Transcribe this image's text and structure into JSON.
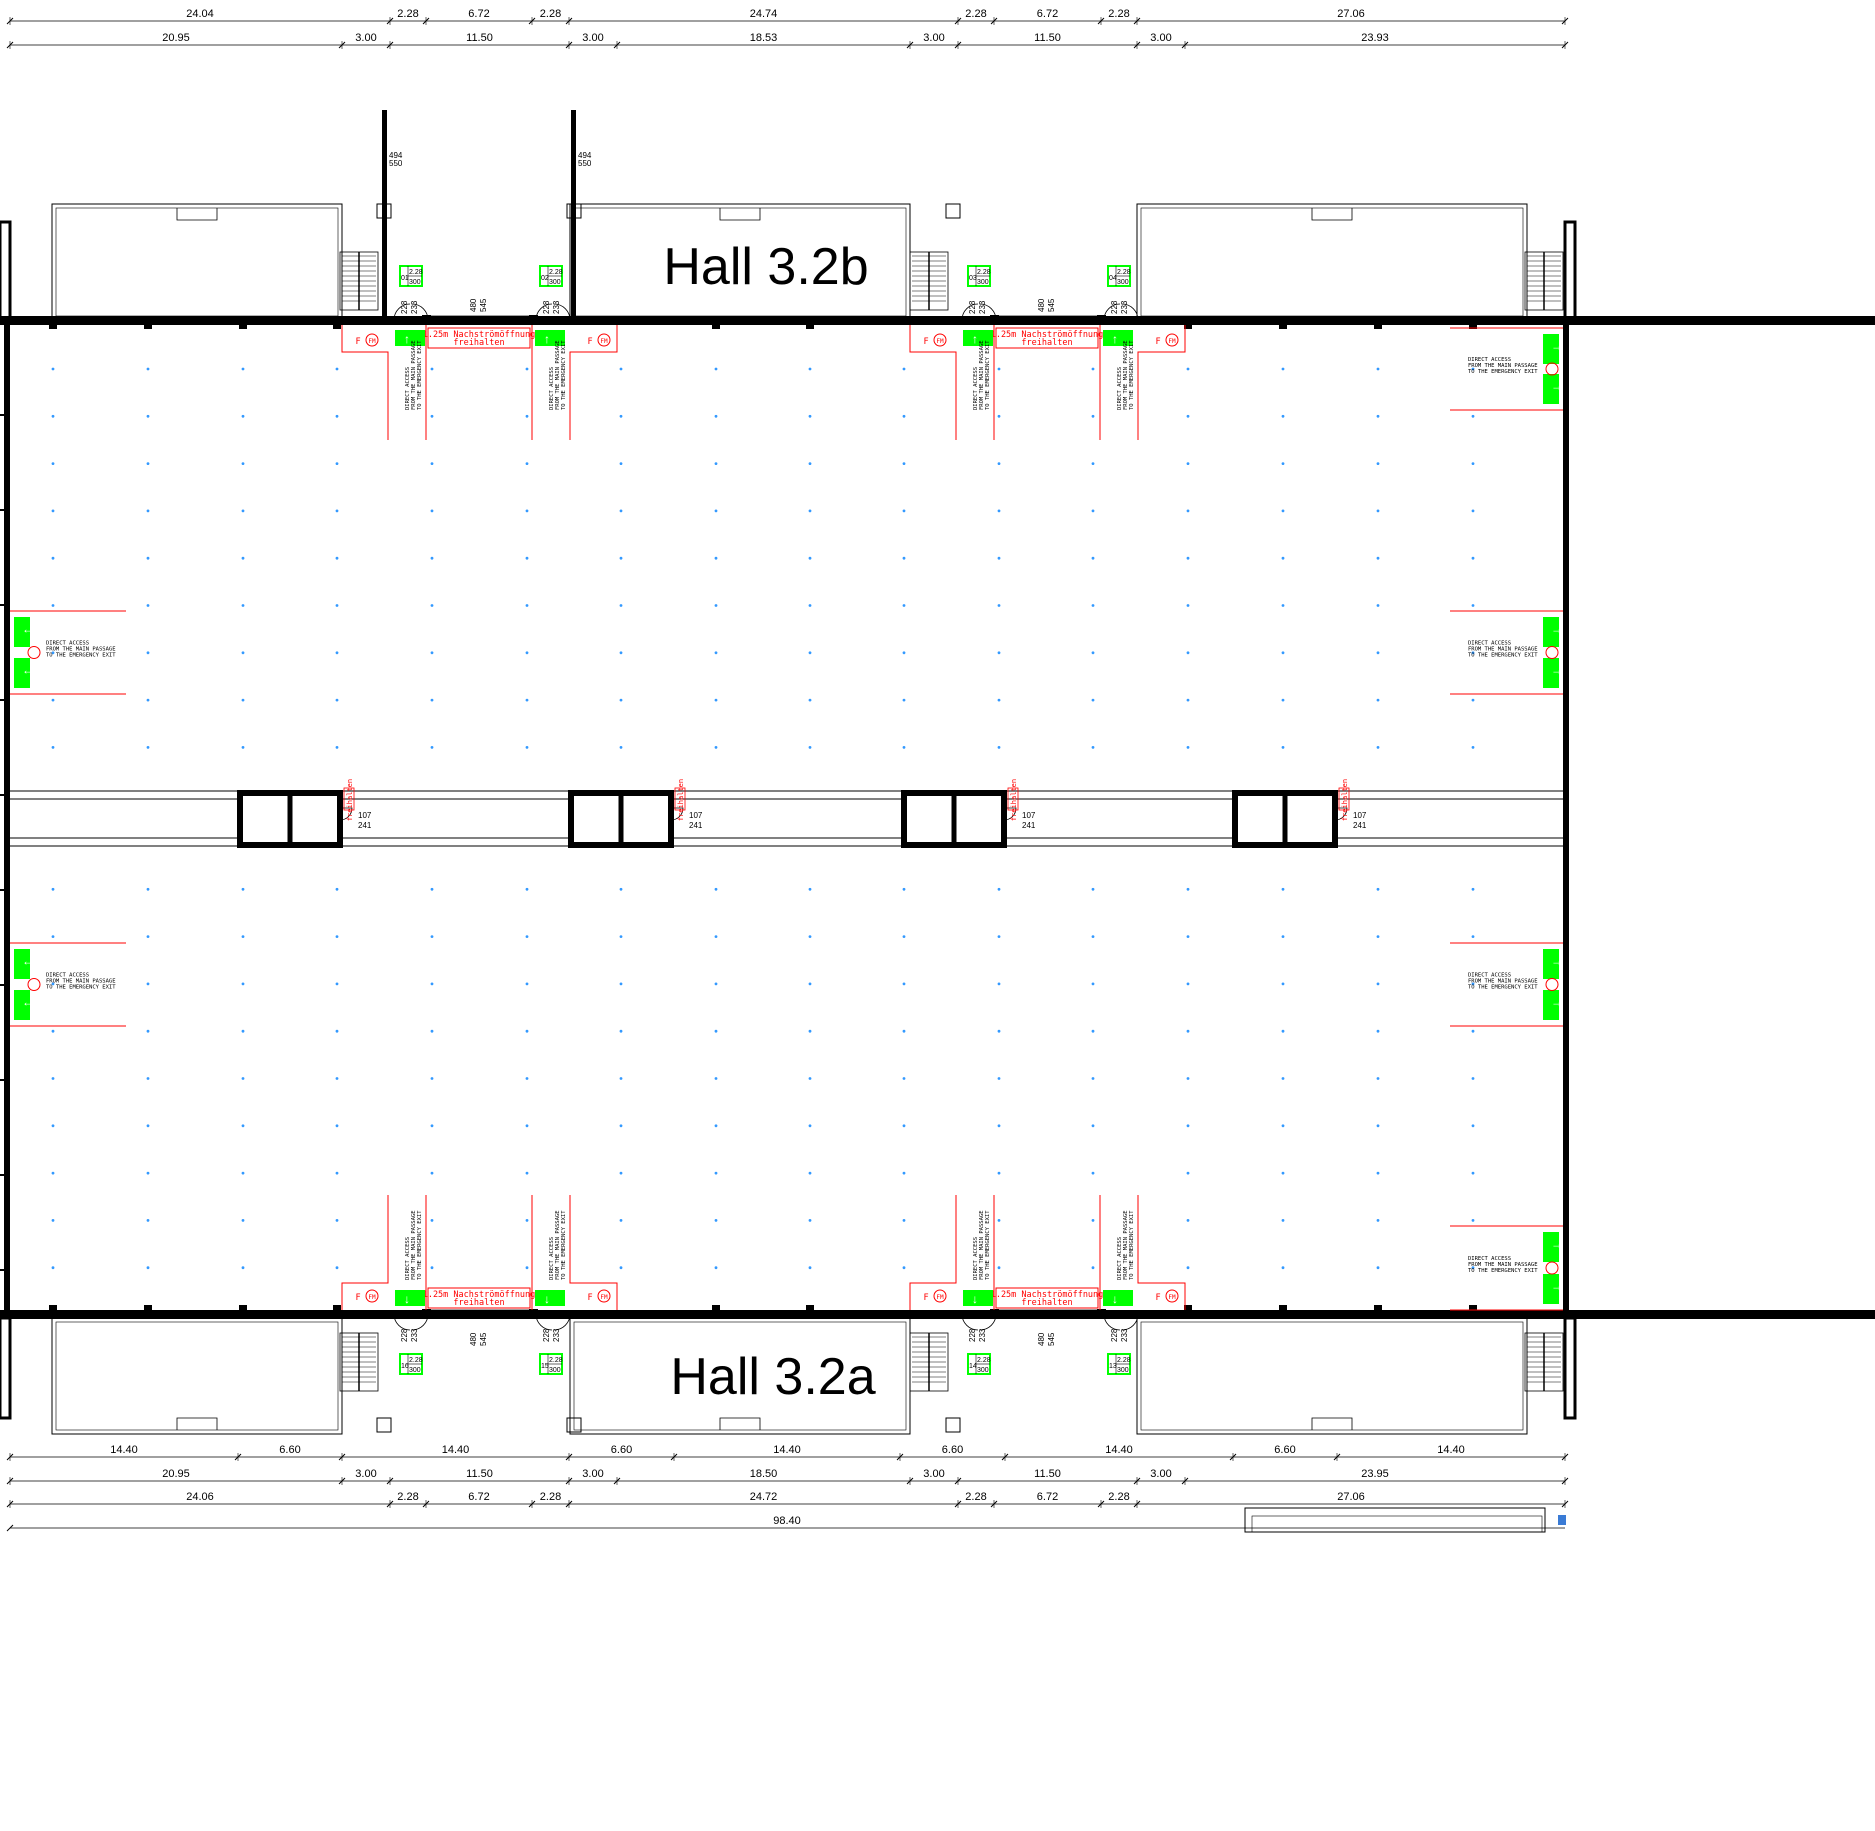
{
  "halls": {
    "north": "Hall 3.2b",
    "south": "Hall 3.2a"
  },
  "dims": {
    "top_row1": [
      "24.04",
      "2.28",
      "6.72",
      "2.28",
      "24.74",
      "2.28",
      "6.72",
      "2.28",
      "27.06"
    ],
    "top_row2": [
      "20.95",
      "3.00",
      "11.50",
      "3.00",
      "18.53",
      "3.00",
      "11.50",
      "3.00",
      "23.93"
    ],
    "bottom_row1": [
      "14.40",
      "6.60",
      "14.40",
      "6.60",
      "14.40",
      "6.60",
      "14.40",
      "6.60",
      "14.40"
    ],
    "bottom_row2": [
      "20.95",
      "3.00",
      "11.50",
      "3.00",
      "18.50",
      "3.00",
      "11.50",
      "3.00",
      "23.95"
    ],
    "bottom_row3": [
      "24.06",
      "2.28",
      "6.72",
      "2.28",
      "24.72",
      "2.28",
      "6.72",
      "2.28",
      "27.06"
    ],
    "total": "98.40"
  },
  "labels": {
    "vent_line1": "1.25m Nachströmöffnung",
    "vent_line2": "freihalten",
    "access_line1": "DIRECT ACCESS",
    "access_line2": "FROM THE MAIN PASSAGE",
    "access_line3": "TO THE EMERGENCY EXIT",
    "fm": "FM",
    "f": "F",
    "col_freihalten": "freihalten",
    "col_107": "107",
    "col_241": "241",
    "door_494": "494",
    "door_550": "550",
    "door_228": "228",
    "door_233": "233",
    "door_480": "480",
    "door_545": "545",
    "box_228": "2.28",
    "box_300": "300",
    "exits_top": [
      "01",
      "02",
      "03",
      "04"
    ],
    "exits_bottom": [
      "16",
      "15",
      "14",
      "13"
    ]
  },
  "colors": {
    "wall": "#000000",
    "escape": "#ff0000",
    "sign": "#00ff00",
    "grid_dot": "#3399ff"
  }
}
